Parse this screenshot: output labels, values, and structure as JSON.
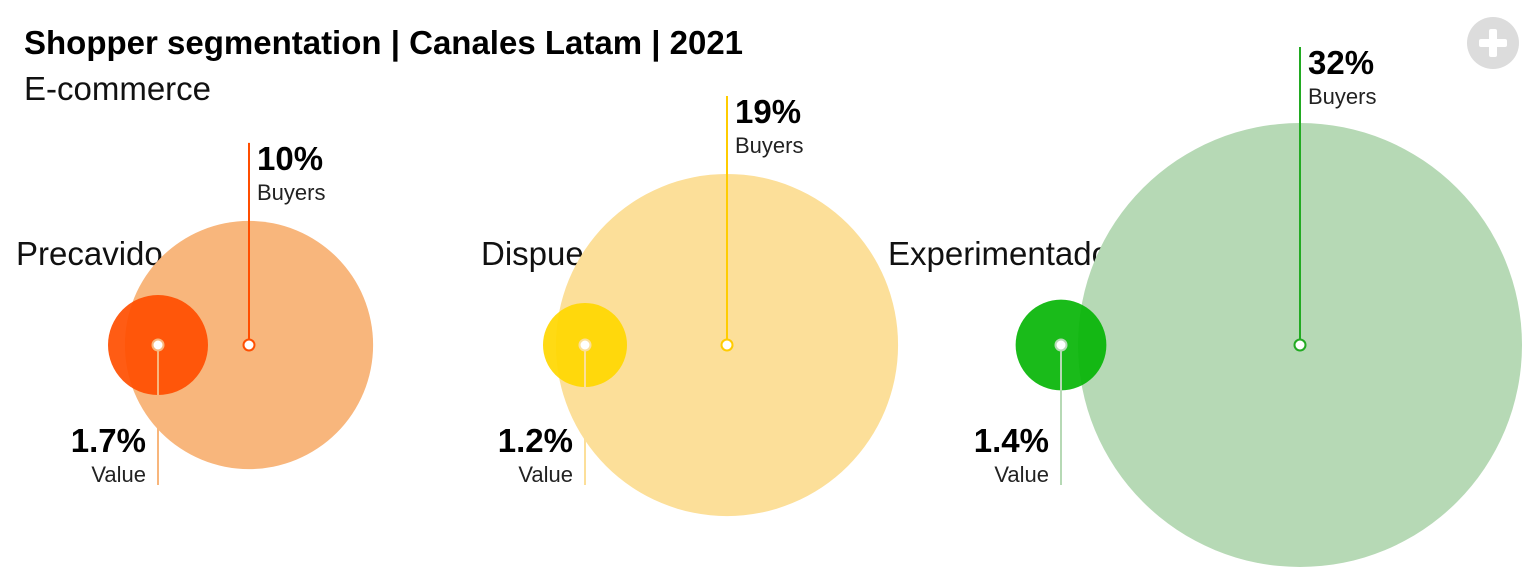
{
  "header": {
    "title": "Shopper segmentation | Canales Latam | 2021",
    "subtitle": "E-commerce"
  },
  "controls": {
    "expand_icon": "plus-circle-icon"
  },
  "chart_data": {
    "type": "bubble",
    "title": "Shopper segmentation | Canales Latam | 2021",
    "subtitle": "E-commerce",
    "value_label": "Value",
    "buyers_label": "Buyers",
    "segments": [
      {
        "name": "Precavido",
        "value": 1.7,
        "value_text": "1.7%",
        "buyers": 10,
        "buyers_text": "10%",
        "value_color": "#ff4e00",
        "buyers_color": "#f8b67c",
        "buyers_line_color": "#ff4e00",
        "value_line_color": "#f8b67c"
      },
      {
        "name": "Dispuesto",
        "value": 1.2,
        "value_text": "1.2%",
        "buyers": 19,
        "buyers_text": "19%",
        "value_color": "#ffd700",
        "buyers_color": "#fcdf99",
        "buyers_line_color": "#ffcc00",
        "value_line_color": "#fcdf99"
      },
      {
        "name": "Experimentado",
        "value": 1.4,
        "value_text": "1.4%",
        "buyers": 32,
        "buyers_text": "32%",
        "value_color": "#07b507",
        "buyers_color": "#b6d9b5",
        "buyers_line_color": "#22aa22",
        "value_line_color": "#b6d9b5"
      }
    ]
  }
}
